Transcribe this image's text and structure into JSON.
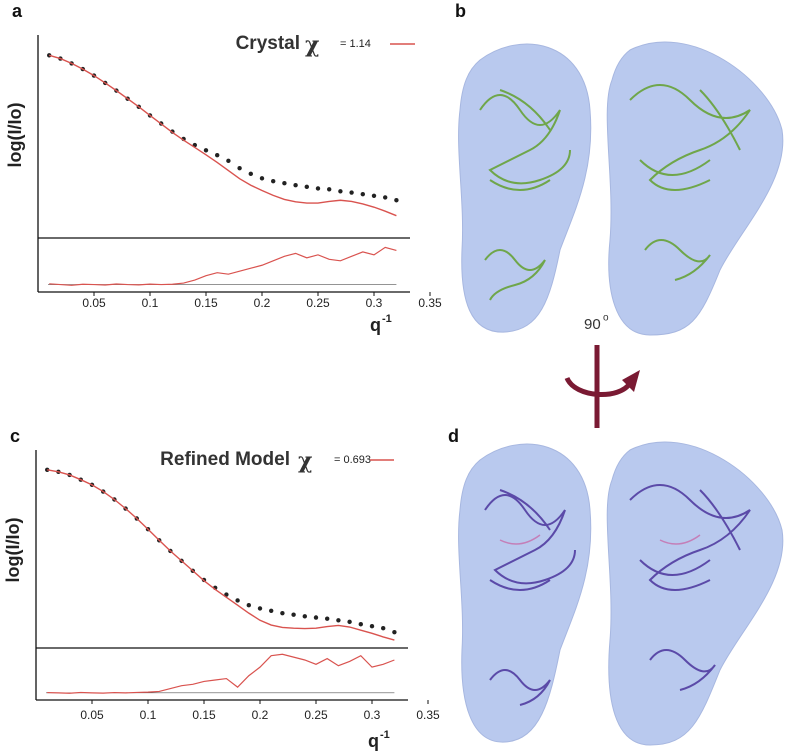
{
  "chart_data": [
    {
      "type": "scatter",
      "panel": "a",
      "title": "Crystal",
      "symbol": "χ",
      "x_label": "q",
      "x_label_sup": "-1",
      "y_label": "log(I/Io)",
      "xlim": [
        0,
        0.35
      ],
      "xticks": [
        0.05,
        0.1,
        0.15,
        0.2,
        0.25,
        0.3,
        0.35
      ],
      "ylim": [
        -4.5,
        0.5
      ],
      "x": [
        0.01,
        0.02,
        0.03,
        0.04,
        0.05,
        0.06,
        0.07,
        0.08,
        0.09,
        0.1,
        0.11,
        0.12,
        0.13,
        0.14,
        0.15,
        0.16,
        0.17,
        0.18,
        0.19,
        0.2,
        0.21,
        0.22,
        0.23,
        0.24,
        0.25,
        0.26,
        0.27,
        0.28,
        0.29,
        0.3,
        0.31,
        0.32
      ],
      "series": [
        {
          "color": "#222222",
          "values": [
            0,
            -0.08,
            -0.2,
            -0.34,
            -0.5,
            -0.68,
            -0.87,
            -1.07,
            -1.27,
            -1.48,
            -1.68,
            -1.88,
            -2.06,
            -2.21,
            -2.34,
            -2.46,
            -2.6,
            -2.78,
            -2.92,
            -3.03,
            -3.1,
            -3.15,
            -3.2,
            -3.24,
            -3.28,
            -3.3,
            -3.35,
            -3.38,
            -3.42,
            -3.46,
            -3.5,
            -3.57
          ]
        },
        {
          "name": "= 1.14",
          "color": "#d9534f",
          "values": [
            0,
            -0.08,
            -0.2,
            -0.34,
            -0.5,
            -0.68,
            -0.87,
            -1.07,
            -1.27,
            -1.48,
            -1.69,
            -1.9,
            -2.09,
            -2.27,
            -2.45,
            -2.64,
            -2.84,
            -3.04,
            -3.2,
            -3.33,
            -3.45,
            -3.55,
            -3.61,
            -3.64,
            -3.64,
            -3.6,
            -3.57,
            -3.6,
            -3.66,
            -3.74,
            -3.84,
            -3.95
          ]
        }
      ],
      "residuals": {
        "color": "#d9534f",
        "ylim": [
          -0.5,
          3
        ],
        "values": [
          0.05,
          0,
          -0.05,
          0.02,
          0,
          -0.03,
          0.04,
          0,
          -0.02,
          0.03,
          0,
          0.02,
          0.1,
          0.3,
          0.6,
          0.8,
          0.7,
          0.9,
          1.1,
          1.3,
          1.6,
          1.9,
          2.1,
          1.8,
          2.0,
          1.7,
          1.6,
          1.9,
          2.2,
          2.0,
          2.5,
          2.3
        ]
      }
    },
    {
      "type": "scatter",
      "panel": "c",
      "title": "Refined Model",
      "symbol": "χ",
      "x_label": "q",
      "x_label_sup": "-1",
      "y_label": "log(I/Io)",
      "xlim": [
        0,
        0.35
      ],
      "xticks": [
        0.05,
        0.1,
        0.15,
        0.2,
        0.25,
        0.3,
        0.35
      ],
      "ylim": [
        -4.5,
        0.5
      ],
      "x": [
        0.01,
        0.02,
        0.03,
        0.04,
        0.05,
        0.06,
        0.07,
        0.08,
        0.09,
        0.1,
        0.11,
        0.12,
        0.13,
        0.14,
        0.15,
        0.16,
        0.17,
        0.18,
        0.19,
        0.2,
        0.21,
        0.22,
        0.23,
        0.24,
        0.25,
        0.26,
        0.27,
        0.28,
        0.29,
        0.3,
        0.31,
        0.32
      ],
      "series": [
        {
          "color": "#222222",
          "values": [
            0,
            -0.05,
            -0.13,
            -0.25,
            -0.38,
            -0.55,
            -0.75,
            -0.98,
            -1.23,
            -1.5,
            -1.78,
            -2.05,
            -2.3,
            -2.55,
            -2.78,
            -2.98,
            -3.15,
            -3.3,
            -3.42,
            -3.5,
            -3.56,
            -3.62,
            -3.66,
            -3.7,
            -3.73,
            -3.76,
            -3.8,
            -3.84,
            -3.9,
            -3.95,
            -4.0,
            -4.1
          ]
        },
        {
          "name": "= 0.693",
          "color": "#d9534f",
          "values": [
            0,
            -0.05,
            -0.13,
            -0.25,
            -0.38,
            -0.55,
            -0.75,
            -0.98,
            -1.23,
            -1.5,
            -1.78,
            -2.05,
            -2.3,
            -2.55,
            -2.8,
            -3.02,
            -3.22,
            -3.42,
            -3.62,
            -3.8,
            -3.92,
            -3.98,
            -4.0,
            -4.01,
            -4.0,
            -3.96,
            -3.93,
            -3.97,
            -4.05,
            -4.13,
            -4.22,
            -4.3
          ]
        }
      ],
      "residuals": {
        "color": "#d9534f",
        "ylim": [
          -0.5,
          3
        ],
        "values": [
          0.02,
          0,
          -0.03,
          0.03,
          0,
          -0.02,
          0.02,
          0,
          0.03,
          0.05,
          0.1,
          0.3,
          0.5,
          0.6,
          0.8,
          0.9,
          1.0,
          0.4,
          1.2,
          1.8,
          2.6,
          2.7,
          2.5,
          2.3,
          2.0,
          2.4,
          1.9,
          2.2,
          2.6,
          1.8,
          2.0,
          2.3
        ]
      }
    }
  ],
  "figure": {
    "panel_b": "b",
    "panel_d": "d",
    "rotation": "90",
    "rotation_sup": "o"
  }
}
